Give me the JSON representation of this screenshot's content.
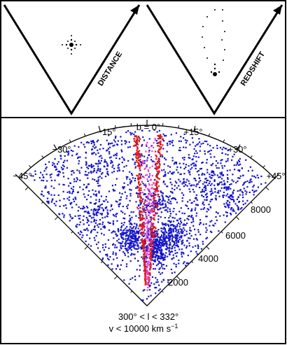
{
  "top_panels": {
    "left_label": "DISTANCE",
    "right_label": "REDSHIFT"
  },
  "wedge": {
    "center_label": "b = 0°",
    "angle_labels": [
      "−45°",
      "−30°",
      "−15°",
      "+15°",
      "+30°",
      "+45°"
    ],
    "velocity_labels": [
      "2000",
      "4000",
      "6000",
      "8000"
    ]
  },
  "caption": {
    "line1": "300° < l < 332°",
    "line2": "v < 10000 km s",
    "line2_sup": "−1"
  },
  "colors": {
    "blue_points": "#1414c8",
    "red_points": "#e01818",
    "magenta_points": "#e040d0",
    "frame": "#000000"
  }
}
